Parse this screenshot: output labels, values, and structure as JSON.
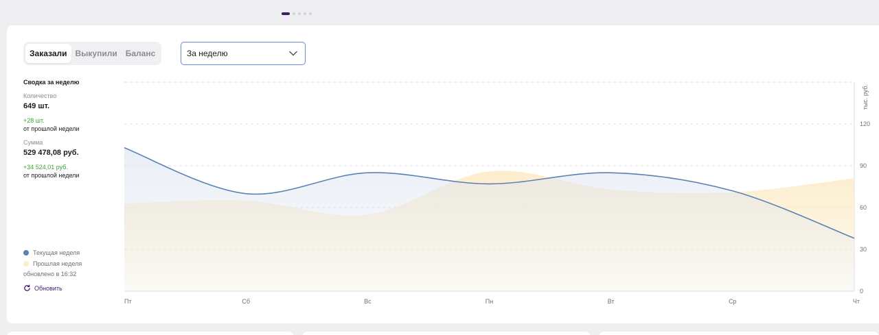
{
  "pager": {
    "count": 5,
    "active": 0
  },
  "tabs": [
    {
      "label": "Заказали",
      "active": true
    },
    {
      "label": "Выкупили",
      "active": false
    },
    {
      "label": "Баланс",
      "active": false
    }
  ],
  "period_select": {
    "value": "За неделю"
  },
  "summary": {
    "title": "Сводка за неделю",
    "quantity_label": "Количество",
    "quantity_value": "649 шт.",
    "quantity_delta": "+28 шт.",
    "quantity_delta_note": "от прошлой недели",
    "sum_label": "Сумма",
    "sum_value": "529 478,08 руб.",
    "sum_delta": "+34 524,01 руб.",
    "sum_delta_note": "от прошлой недели"
  },
  "legend": {
    "current_label": "Текущая неделя",
    "previous_label": "Прошлая неделя",
    "updated": "обновлено в 16:32",
    "refresh_label": "Обновить"
  },
  "colors": {
    "current": "#5b82b0",
    "previous": "#fcecc9",
    "accent": "#3e1b6d",
    "positive": "#3aa33a",
    "select_border": "#6f85d6"
  },
  "icons": {
    "refresh": "refresh-icon",
    "dropdown": "chevron-down-icon"
  },
  "chart_data": {
    "type": "area",
    "categories": [
      "Пт",
      "Сб",
      "Вс",
      "Пн",
      "Вт",
      "Ср",
      "Чт"
    ],
    "ylabel": "тыс. руб.",
    "ylim": [
      0,
      150
    ],
    "yticks": [
      0,
      30,
      60,
      90,
      120
    ],
    "grid": true,
    "series": [
      {
        "name": "Текущая неделя",
        "values": [
          103,
          70,
          85,
          77,
          85,
          72,
          38
        ]
      },
      {
        "name": "Прошлая неделя",
        "values": [
          63,
          65,
          55,
          86,
          73,
          71,
          81
        ]
      }
    ]
  }
}
